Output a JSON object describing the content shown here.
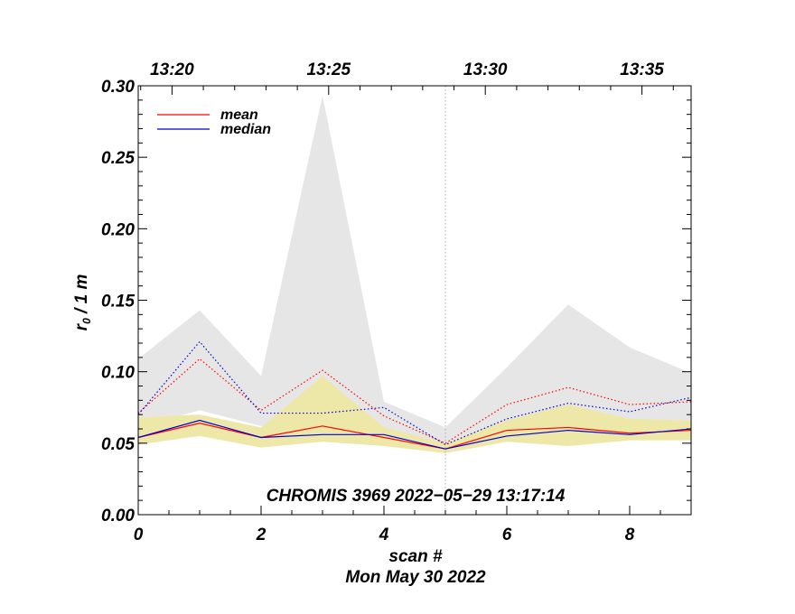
{
  "chart_data": {
    "type": "line",
    "xlabel": "scan #",
    "date_label": "Mon May 30 2022",
    "ylabel_main": "r",
    "ylabel_sub": "0",
    "ylabel_rest": " / 1 m",
    "annotation": "CHROMIS 3969 2022−05−29 13:17:14",
    "xlim": [
      0,
      9
    ],
    "ylim": [
      0,
      0.3
    ],
    "x_ticks": [
      0,
      2,
      4,
      6,
      8
    ],
    "x_tick_labels": [
      "0",
      "2",
      "4",
      "6",
      "8"
    ],
    "y_ticks": [
      0,
      0.05,
      0.1,
      0.15,
      0.2,
      0.25,
      0.3
    ],
    "y_tick_labels": [
      "0.00",
      "0.05",
      "0.10",
      "0.15",
      "0.20",
      "0.25",
      "0.30"
    ],
    "top_axis_ticks": [
      0.55,
      3.1,
      5.65,
      8.2
    ],
    "top_axis_labels": [
      "13:20",
      "13:25",
      "13:30",
      "13:35"
    ],
    "vertical_marker_x": 5,
    "x": [
      0,
      1,
      2,
      3,
      4,
      5,
      6,
      7,
      8,
      9
    ],
    "gray_band": {
      "upper": [
        0.109,
        0.143,
        0.097,
        0.293,
        0.079,
        0.061,
        0.103,
        0.147,
        0.117,
        0.099
      ],
      "lower": [
        0.061,
        0.073,
        0.062,
        0.056,
        0.059,
        0.047,
        0.061,
        0.063,
        0.06,
        0.061
      ]
    },
    "yellow_band": {
      "upper": [
        0.068,
        0.07,
        0.061,
        0.097,
        0.061,
        0.05,
        0.066,
        0.077,
        0.067,
        0.066
      ],
      "lower": [
        0.049,
        0.055,
        0.047,
        0.051,
        0.048,
        0.043,
        0.051,
        0.048,
        0.052,
        0.052
      ]
    },
    "series": [
      {
        "name": "mean",
        "style": "solid",
        "color": "#ff0000",
        "values": [
          0.054,
          0.064,
          0.054,
          0.062,
          0.054,
          0.046,
          0.059,
          0.061,
          0.057,
          0.059
        ]
      },
      {
        "name": "median",
        "style": "solid",
        "color": "#0000cc",
        "values": [
          0.054,
          0.066,
          0.054,
          0.056,
          0.056,
          0.046,
          0.055,
          0.059,
          0.056,
          0.06
        ]
      },
      {
        "style": "dotted",
        "color": "#ff0000",
        "values": [
          0.071,
          0.109,
          0.073,
          0.101,
          0.069,
          0.05,
          0.077,
          0.089,
          0.077,
          0.079
        ]
      },
      {
        "style": "dotted",
        "color": "#0000cc",
        "values": [
          0.07,
          0.121,
          0.071,
          0.071,
          0.075,
          0.049,
          0.067,
          0.078,
          0.072,
          0.082
        ]
      }
    ],
    "legend_position": "top-left",
    "colors": {
      "gray_band": "#e6e6e6",
      "yellow_band": "#ede8a8",
      "axis": "#000000"
    }
  }
}
